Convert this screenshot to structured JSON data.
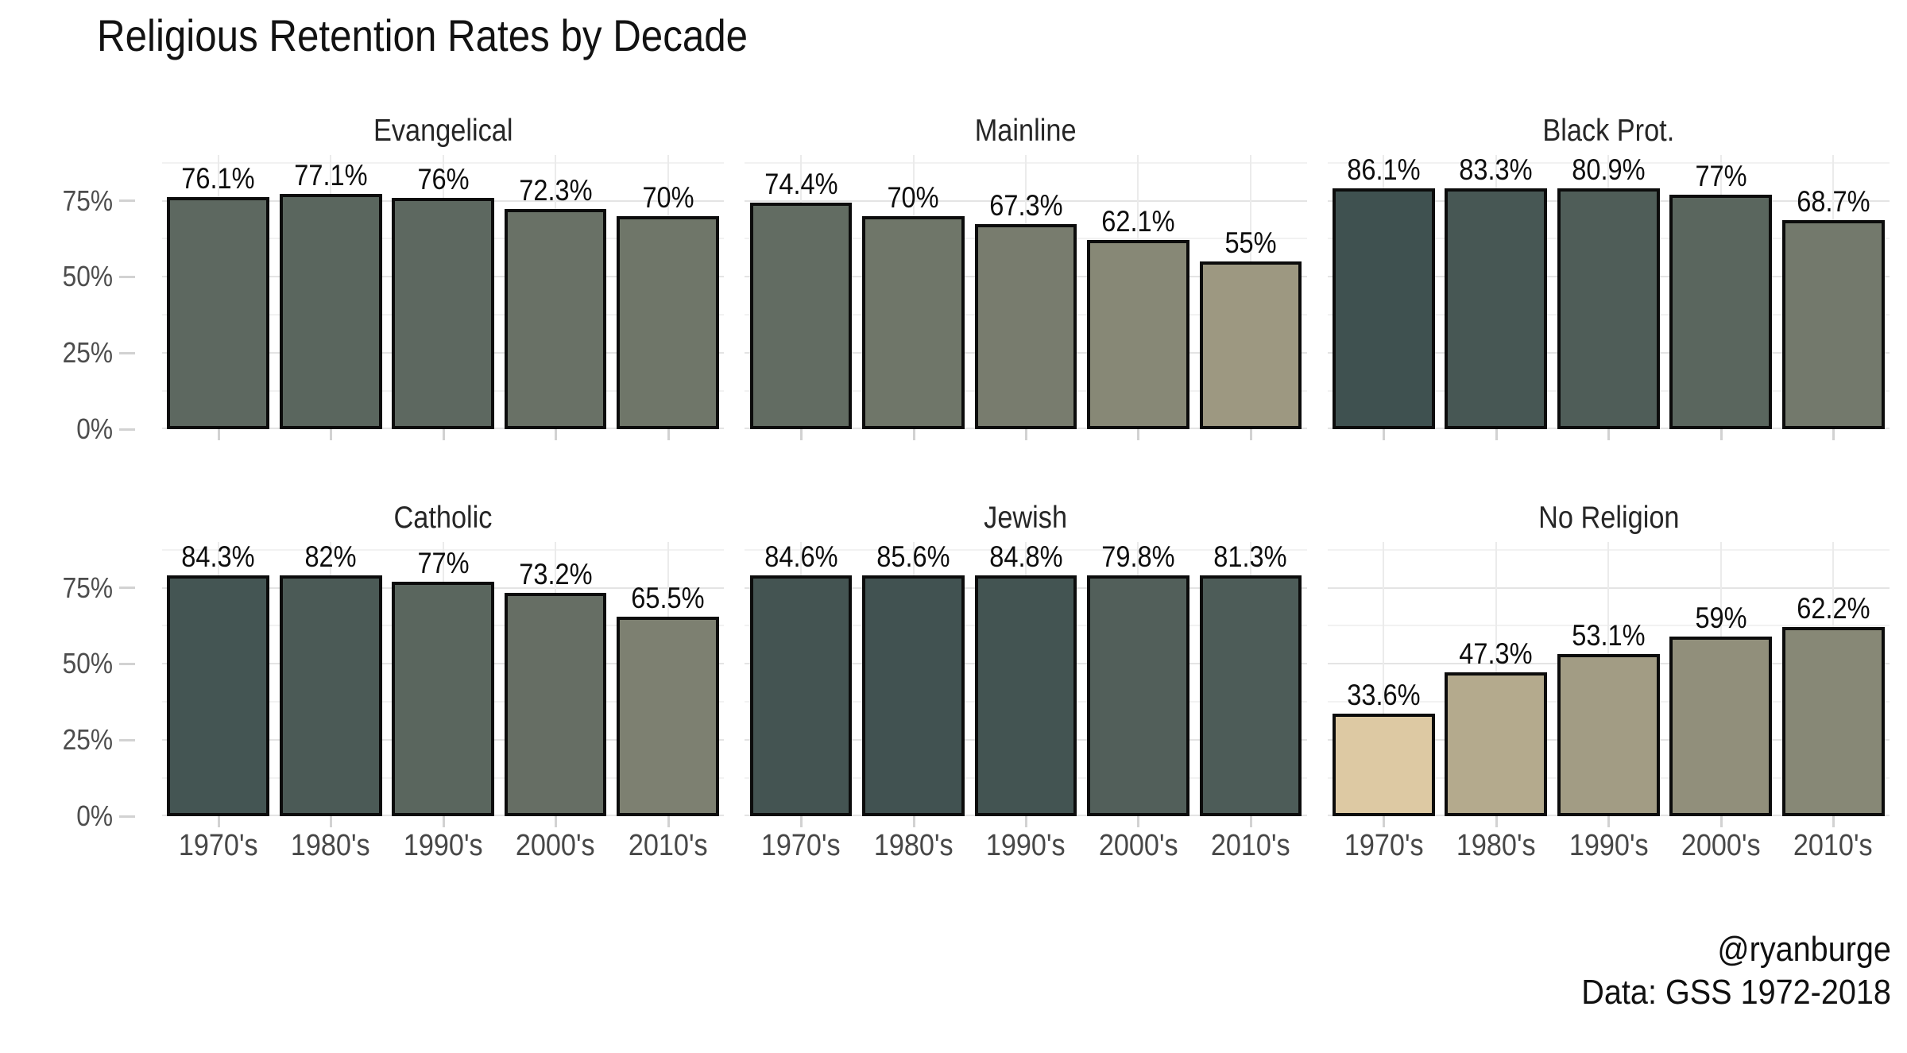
{
  "title": "Religious Retention Rates by Decade",
  "caption": {
    "line1": "@ryanburge",
    "line2": "Data: GSS 1972-2018"
  },
  "chart_data": {
    "type": "bar",
    "layout": "2 rows x 3 columns of facets, shared axes",
    "categories": [
      "1970's",
      "1980's",
      "1990's",
      "2000's",
      "2010's"
    ],
    "y_ticks": [
      {
        "label": "0%",
        "value": 0
      },
      {
        "label": "25%",
        "value": 25
      },
      {
        "label": "50%",
        "value": 50
      },
      {
        "label": "75%",
        "value": 75
      }
    ],
    "ylim": [
      0,
      90
    ],
    "grid": true,
    "facets": [
      {
        "label": "Evangelical",
        "values": [
          76.1,
          77.1,
          76,
          72.3,
          70
        ],
        "bar_labels": [
          "76.1%",
          "77.1%",
          "76%",
          "72.3%",
          "70%"
        ]
      },
      {
        "label": "Mainline",
        "values": [
          74.4,
          70,
          67.3,
          62.1,
          55
        ],
        "bar_labels": [
          "74.4%",
          "70%",
          "67.3%",
          "62.1%",
          "55%"
        ]
      },
      {
        "label": "Black Prot.",
        "values": [
          86.1,
          83.3,
          80.9,
          77,
          68.7
        ],
        "bar_labels": [
          "86.1%",
          "83.3%",
          "80.9%",
          "77%",
          "68.7%"
        ]
      },
      {
        "label": "Catholic",
        "values": [
          84.3,
          82,
          77,
          73.2,
          65.5
        ],
        "bar_labels": [
          "84.3%",
          "82%",
          "77%",
          "73.2%",
          "65.5%"
        ]
      },
      {
        "label": "Jewish",
        "values": [
          84.6,
          85.6,
          84.8,
          79.8,
          81.3
        ],
        "bar_labels": [
          "84.6%",
          "85.6%",
          "84.8%",
          "79.8%",
          "81.3%"
        ]
      },
      {
        "label": "No Religion",
        "values": [
          33.6,
          47.3,
          53.1,
          59,
          62.2
        ],
        "bar_labels": [
          "33.6%",
          "47.3%",
          "53.1%",
          "59%",
          "62.2%"
        ]
      }
    ],
    "color_scale": {
      "low_value": 33.6,
      "low_color": "#ddc9a3",
      "high_value": 86.1,
      "high_color": "#3f5150"
    },
    "bar_border_color": "#0c0c0c",
    "grid_major_color": "#e4e4e4",
    "grid_minor_color": "#f2f2f2"
  }
}
